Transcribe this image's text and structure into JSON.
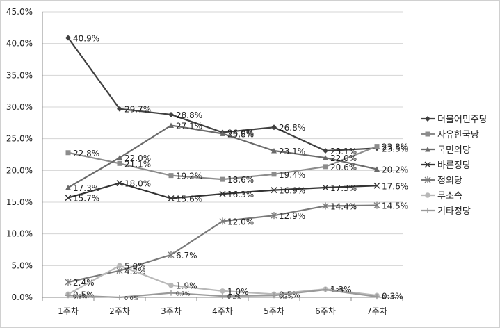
{
  "chart_data": {
    "type": "line",
    "title": "",
    "xlabel": "",
    "ylabel": "",
    "categories": [
      "1주차",
      "2주차",
      "3주차",
      "4주차",
      "5주차",
      "6주차",
      "7주차"
    ],
    "yticks": [
      "0.0%",
      "5.0%",
      "10.0%",
      "15.0%",
      "20.0%",
      "25.0%",
      "30.0%",
      "35.0%",
      "40.0%",
      "45.0%"
    ],
    "ylim": [
      0,
      45
    ],
    "grid": true,
    "legend": "right",
    "series": [
      {
        "name": "더불어민주당",
        "values": [
          40.9,
          29.7,
          28.8,
          26.0,
          26.8,
          23.1,
          23.5
        ],
        "labels": [
          "40.9%",
          "29.7%",
          "28.8%",
          "26.0%",
          "26.8%",
          "23.1%",
          "23.5%"
        ],
        "marker": "diamond",
        "color": "#404040"
      },
      {
        "name": "자유한국당",
        "values": [
          22.8,
          21.1,
          19.2,
          18.6,
          19.4,
          20.6,
          23.8
        ],
        "labels": [
          "22.8%",
          "21.1%",
          "19.2%",
          "18.6%",
          "19.4%",
          "20.6%",
          "23.8%"
        ],
        "marker": "square",
        "color": "#8c8c8c"
      },
      {
        "name": "국민의당",
        "values": [
          17.3,
          22.0,
          27.1,
          25.8,
          23.1,
          22.0,
          20.2
        ],
        "labels": [
          "17.3%",
          "22.0%",
          "27.1%",
          "25.8%",
          "23.1%",
          "22.0%",
          "20.2%"
        ],
        "marker": "triangle",
        "color": "#6a6a6a"
      },
      {
        "name": "바른정당",
        "values": [
          15.7,
          18.0,
          15.6,
          16.3,
          16.9,
          17.3,
          17.6
        ],
        "labels": [
          "15.7%",
          "18.0%",
          "15.6%",
          "16.3%",
          "16.9%",
          "17.3%",
          "17.6%"
        ],
        "marker": "x",
        "color": "#333333"
      },
      {
        "name": "정의당",
        "values": [
          2.4,
          4.2,
          6.7,
          12.0,
          12.9,
          14.4,
          14.5
        ],
        "labels": [
          "2.4%",
          "4.2%",
          "6.7%",
          "12.0%",
          "12.9%",
          "14.4%",
          "14.5%"
        ],
        "marker": "star",
        "color": "#7a7a7a"
      },
      {
        "name": "무소속",
        "values": [
          0.5,
          5.0,
          1.9,
          1.0,
          0.5,
          1.3,
          0.3
        ],
        "labels": [
          "0.5%",
          "5.0%",
          "1.9%",
          "1.0%",
          "0.5%",
          "1.3%",
          "0.3%"
        ],
        "marker": "circle",
        "color": "#b8b8b8"
      },
      {
        "name": "기타정당",
        "values": [
          0.3,
          0.0,
          0.7,
          0.2,
          0.3,
          1.2,
          0.1
        ],
        "labels": [
          "0.3%",
          "0.0%",
          "0.7%",
          "0.2%",
          "0.3%",
          "1.2%",
          "0.1%"
        ],
        "marker": "plus",
        "color": "#999999"
      }
    ]
  }
}
